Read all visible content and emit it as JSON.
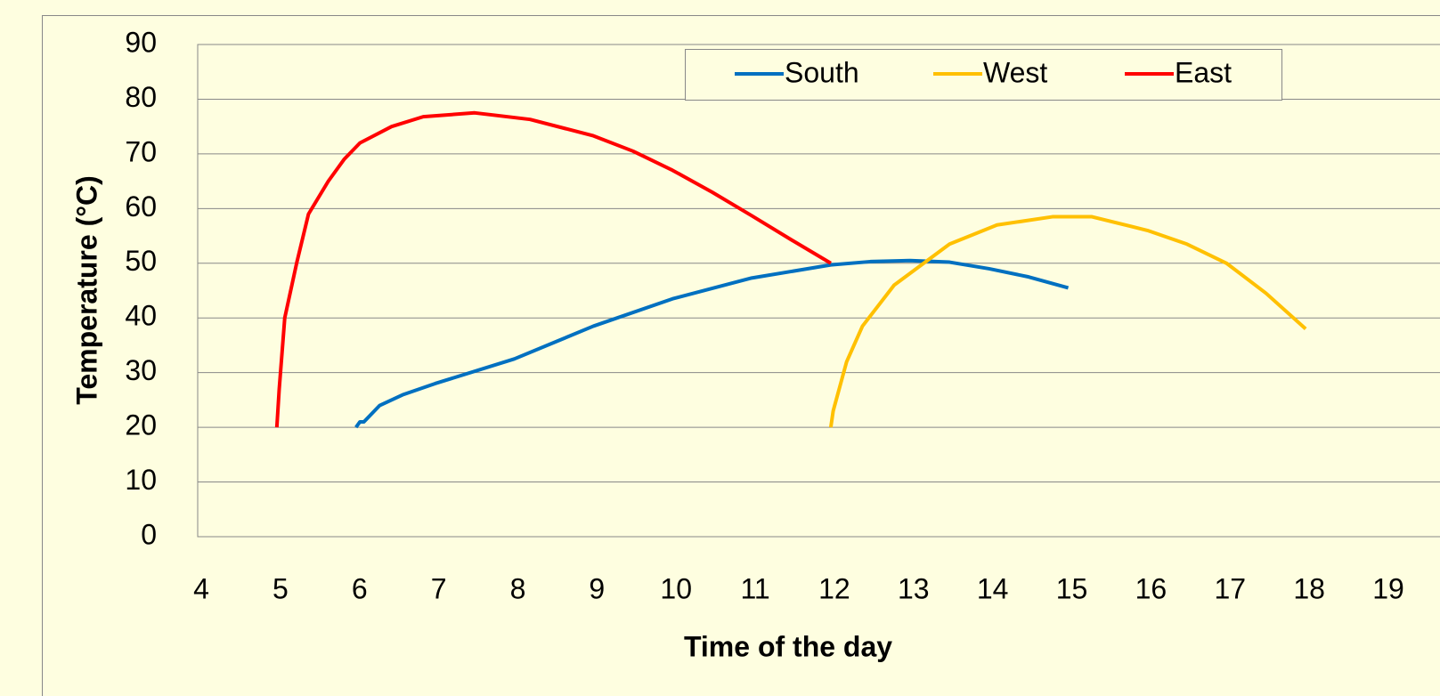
{
  "chart_data": {
    "type": "line",
    "x_label": "Time of the day",
    "y_label": "Temperature (°C)",
    "xlim": [
      4,
      19
    ],
    "xticks": [
      4,
      5,
      6,
      7,
      8,
      9,
      10,
      11,
      12,
      13,
      14,
      15,
      16,
      17,
      18,
      19
    ],
    "ylim": [
      0,
      90
    ],
    "yticks": [
      0,
      10,
      20,
      30,
      40,
      50,
      60,
      70,
      80,
      90
    ],
    "grid": true,
    "legend": "upper right",
    "series": [
      {
        "name": "South",
        "color": "#0070c0",
        "x": [
          6,
          6.05,
          6.1,
          6.3,
          6.6,
          7,
          8,
          9,
          10,
          11,
          12,
          12.5,
          13,
          13.5,
          14,
          14.5,
          15
        ],
        "values": [
          20,
          21,
          21,
          24,
          26,
          28,
          32.5,
          38.5,
          43.5,
          47.3,
          49.7,
          50.3,
          50.5,
          50.2,
          49,
          47.5,
          45.5
        ]
      },
      {
        "name": "West",
        "color": "#ffc000",
        "x": [
          12,
          12.03,
          12.2,
          12.4,
          12.8,
          13.5,
          14.1,
          14.8,
          15.3,
          16,
          16.5,
          17,
          17.5,
          18
        ],
        "values": [
          20,
          23,
          32,
          38.5,
          46,
          53.5,
          57,
          58.5,
          58.5,
          56,
          53.5,
          50,
          44.5,
          38
        ]
      },
      {
        "name": "East",
        "color": "#ff0000",
        "x": [
          5,
          5.03,
          5.1,
          5.25,
          5.4,
          5.65,
          5.85,
          6.05,
          6.45,
          6.85,
          7.5,
          8.2,
          9,
          9.5,
          10,
          10.5,
          11,
          11.5,
          12
        ],
        "values": [
          20,
          27,
          40,
          50,
          59,
          65,
          69,
          72,
          75,
          76.8,
          77.5,
          76.3,
          73.3,
          70.5,
          67,
          63,
          58.7,
          54.3,
          50
        ]
      }
    ]
  }
}
